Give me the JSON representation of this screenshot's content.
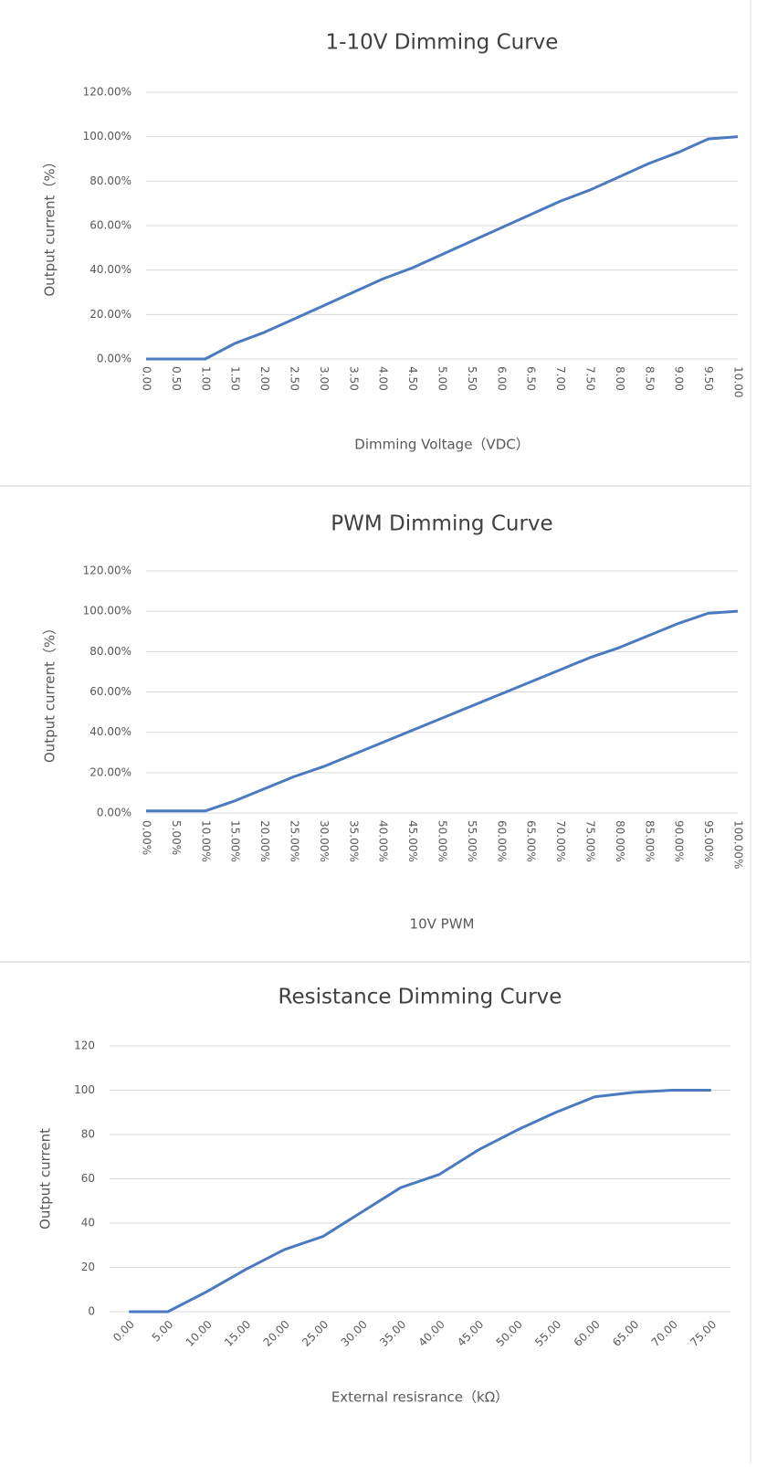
{
  "chart_data": [
    {
      "type": "line",
      "title": "1-10V Dimming Curve",
      "x_label": "Dimming Voltage（VDC）",
      "y_label": "Output current（%）",
      "categories": [
        "0.00",
        "0.50",
        "1.00",
        "1.50",
        "2.00",
        "2.50",
        "3.00",
        "3.50",
        "4.00",
        "4.50",
        "5.00",
        "5.50",
        "6.00",
        "6.50",
        "7.00",
        "7.50",
        "8.00",
        "8.50",
        "9.00",
        "9.50",
        "10.00"
      ],
      "values": [
        0,
        0,
        0,
        7,
        12,
        18,
        24,
        30,
        36,
        41,
        47,
        53,
        59,
        65,
        71,
        76,
        82,
        88,
        93,
        99,
        100
      ],
      "color": "#4a7abf",
      "ylim": [
        0,
        120
      ],
      "grid": true,
      "yticks": [
        {
          "value": 0,
          "label": "0.00%"
        },
        {
          "value": 20,
          "label": "20.00%"
        },
        {
          "value": 40,
          "label": "40.00%"
        },
        {
          "value": 60,
          "label": "60.00%"
        },
        {
          "value": 80,
          "label": "80.00%"
        },
        {
          "value": 100,
          "label": "100.00%"
        },
        {
          "value": 120,
          "label": "120.00%"
        }
      ]
    },
    {
      "type": "line",
      "title": "PWM Dimming Curve",
      "x_label": "10V PWM",
      "y_label": "Output current（%）",
      "categories": [
        "0.00%",
        "5.00%",
        "10.00%",
        "15.00%",
        "20.00%",
        "25.00%",
        "30.00%",
        "35.00%",
        "40.00%",
        "45.00%",
        "50.00%",
        "55.00%",
        "60.00%",
        "65.00%",
        "70.00%",
        "75.00%",
        "80.00%",
        "85.00%",
        "90.00%",
        "95.00%",
        "100.00%"
      ],
      "values": [
        1,
        1,
        1,
        6,
        12,
        18,
        23,
        29,
        35,
        41,
        47,
        53,
        59,
        65,
        71,
        77,
        82,
        88,
        94,
        99,
        100
      ],
      "color": "#4a7abf",
      "ylim": [
        0,
        120
      ],
      "grid": true,
      "yticks": [
        {
          "value": 0,
          "label": "0.00%"
        },
        {
          "value": 20,
          "label": "20.00%"
        },
        {
          "value": 40,
          "label": "40.00%"
        },
        {
          "value": 60,
          "label": "60.00%"
        },
        {
          "value": 80,
          "label": "80.00%"
        },
        {
          "value": 100,
          "label": "100.00%"
        },
        {
          "value": 120,
          "label": "120.00%"
        }
      ]
    },
    {
      "type": "line",
      "title": "Resistance Dimming Curve",
      "x_label": "External resisrance（kΩ）",
      "y_label": "Output current",
      "categories": [
        "0.00",
        "5.00",
        "10.00",
        "15.00",
        "20.00",
        "25.00",
        "30.00",
        "35.00",
        "40.00",
        "45.00",
        "50.00",
        "55.00",
        "60.00",
        "65.00",
        "70.00",
        "75.00"
      ],
      "values": [
        0,
        0,
        9,
        19,
        28,
        34,
        45,
        56,
        62,
        73,
        82,
        90,
        97,
        99,
        100,
        100
      ],
      "color": "#4a7abf",
      "ylim": [
        0,
        120
      ],
      "grid": true,
      "yticks": [
        0,
        20,
        40,
        60,
        80,
        100,
        120
      ]
    }
  ]
}
